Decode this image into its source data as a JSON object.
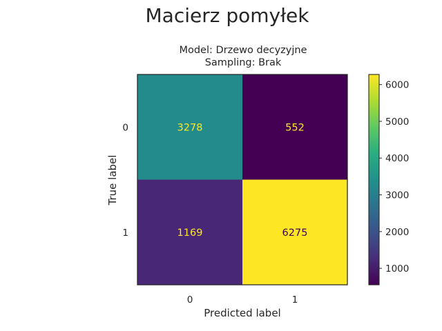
{
  "chart_data": {
    "type": "heatmap",
    "suptitle": "Macierz pomyłek",
    "title_lines": [
      "Model: Drzewo decyzyjne",
      "Sampling: Brak"
    ],
    "xlabel": "Predicted label",
    "ylabel": "True label",
    "x_categories": [
      "0",
      "1"
    ],
    "y_categories": [
      "0",
      "1"
    ],
    "matrix": [
      [
        3278,
        552
      ],
      [
        1169,
        6275
      ]
    ],
    "colormap": "viridis",
    "colorbar": {
      "range": [
        552,
        6275
      ],
      "ticks": [
        1000,
        2000,
        3000,
        4000,
        5000,
        6000
      ]
    }
  }
}
